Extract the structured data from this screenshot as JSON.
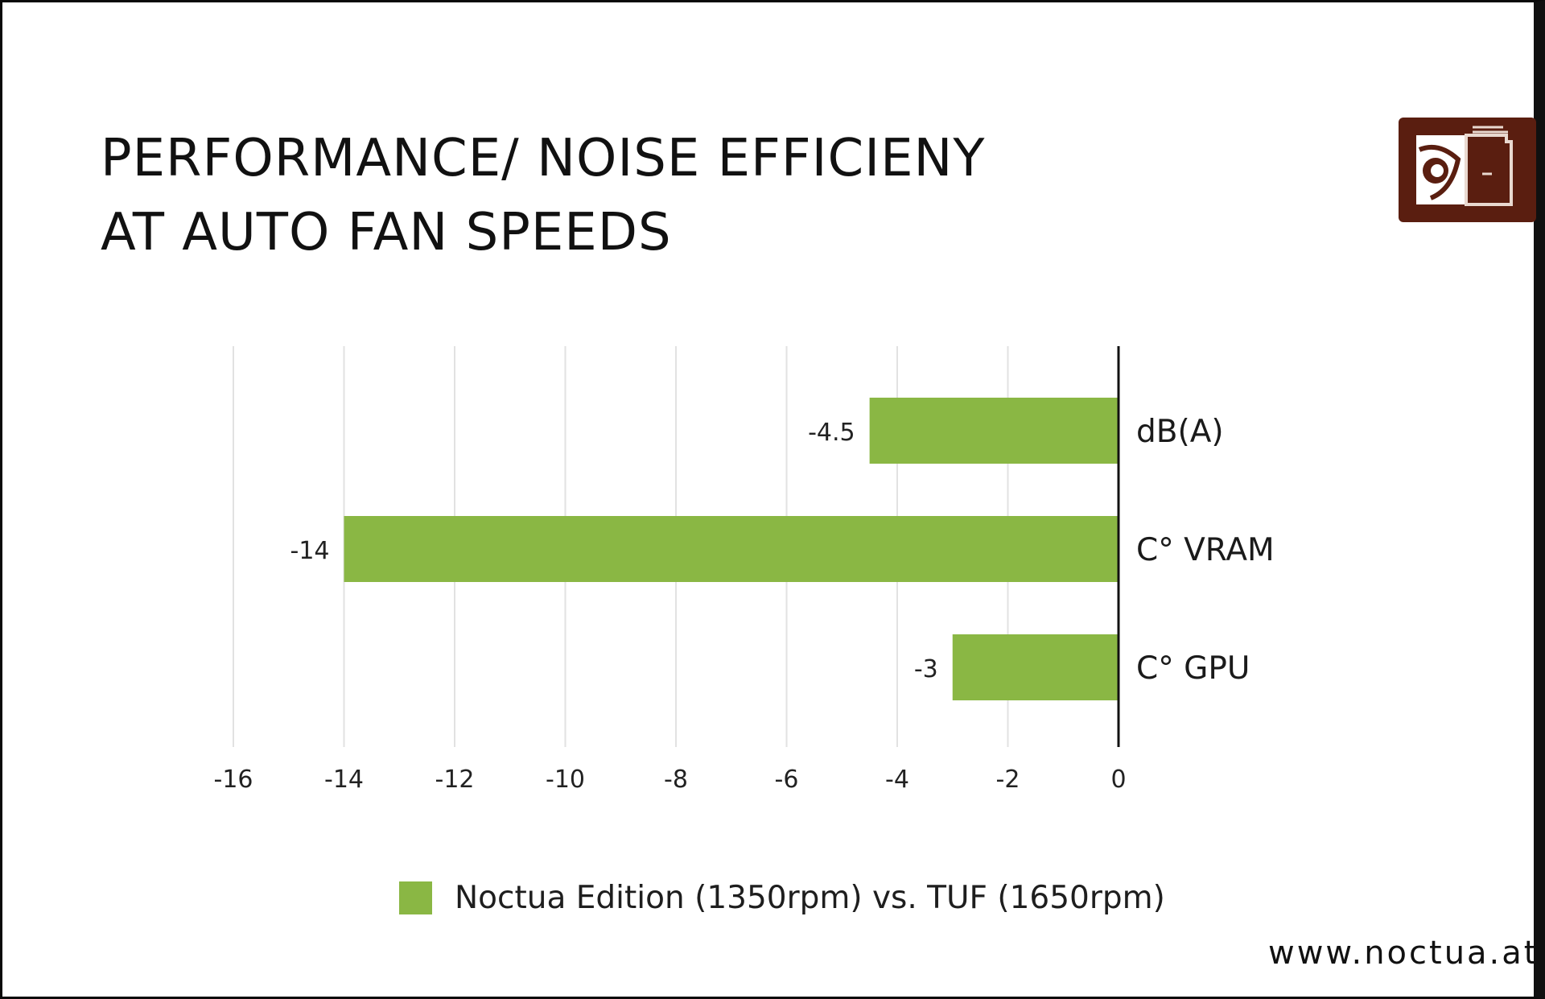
{
  "title": {
    "line1": "PERFORMANCE/ NOISE EFFICIENY",
    "line2": "AT AUTO FAN SPEEDS"
  },
  "logo": {
    "icon": "noctua-owl-logo",
    "color": "#5a1e10"
  },
  "website": "www.noctua.at",
  "colors": {
    "bar": "#8ab744",
    "grid": "#e2e2e2",
    "axis": "#111111"
  },
  "chart_data": {
    "type": "bar",
    "orientation": "horizontal",
    "title": "PERFORMANCE/ NOISE EFFICIENY AT AUTO FAN SPEEDS",
    "categories": [
      "dB(A)",
      "C° VRAM",
      "C° GPU"
    ],
    "series": [
      {
        "name": "Noctua Edition (1350rpm) vs. TUF (1650rpm)",
        "values": [
          -4.5,
          -14,
          -3
        ]
      }
    ],
    "data_labels": [
      "-4.5",
      "-14",
      "-3"
    ],
    "xlim": [
      -16,
      0
    ],
    "xticks": [
      "-16",
      "-14",
      "-12",
      "-10",
      "-8",
      "-6",
      "-4",
      "-2",
      "0"
    ],
    "xtick_values": [
      -16,
      -14,
      -12,
      -10,
      -8,
      -6,
      -4,
      -2,
      0
    ],
    "grid": true,
    "legend_position": "bottom",
    "xlabel": "",
    "ylabel": ""
  }
}
